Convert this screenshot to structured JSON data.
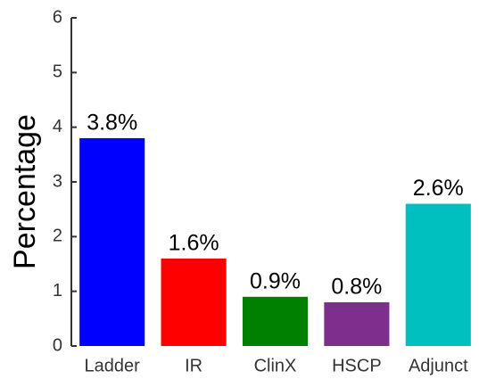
{
  "chart_data": {
    "type": "bar",
    "y_label": "Percentage",
    "categories": [
      "Ladder",
      "IR",
      "ClinX",
      "HSCP",
      "Adjunct"
    ],
    "values": [
      3.8,
      1.6,
      0.9,
      0.8,
      2.6
    ],
    "value_labels": [
      "3.8%",
      "1.6%",
      "0.9%",
      "0.8%",
      "2.6%"
    ],
    "colors": [
      "#0000ff",
      "#ff0000",
      "#008000",
      "#7e2f8e",
      "#00bfbf"
    ],
    "ylim": [
      0,
      6
    ],
    "yticks": [
      0,
      1,
      2,
      3,
      4,
      5,
      6
    ],
    "grid": false
  }
}
